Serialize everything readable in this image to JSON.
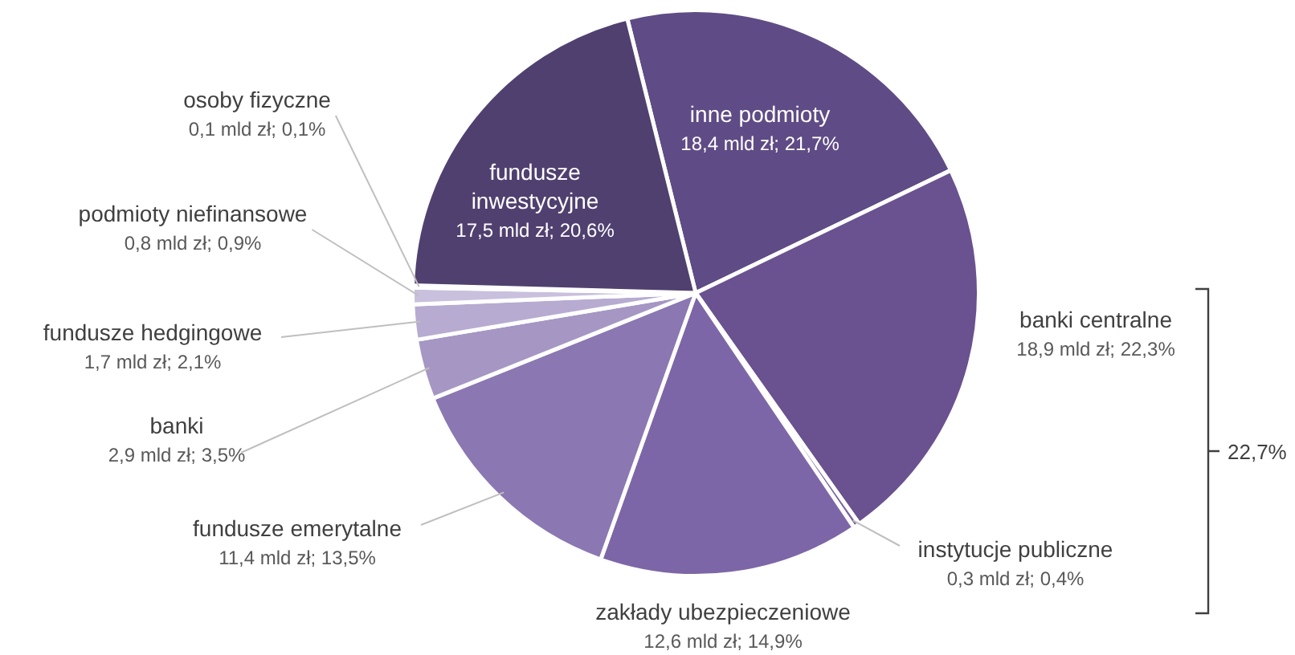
{
  "chart_data": {
    "type": "pie",
    "categories": [
      "inne podmioty",
      "banki centralne",
      "instytucje publiczne",
      "zakłady ubezpieczeniowe",
      "fundusze emerytalne",
      "banki",
      "fundusze hedgingowe",
      "podmioty niefinansowe",
      "osoby fizyczne",
      "fundusze inwestycyjne"
    ],
    "values": [
      18.4,
      18.9,
      0.3,
      12.6,
      11.4,
      2.9,
      1.7,
      0.8,
      0.1,
      17.5
    ],
    "value_labels": [
      "18,4 mld zł; 21,7%",
      "18,9 mld zł; 22,3%",
      "0,3 mld zł; 0,4%",
      "12,6 mld zł; 14,9%",
      "11,4 mld zł; 13,5%",
      "2,9 mld zł; 3,5%",
      "1,7 mld zł; 2,1%",
      "0,8 mld zł; 0,9%",
      "0,1 mld zł; 0,1%",
      "17,5 mld zł; 20,6%"
    ],
    "colors": [
      "#5f4b85",
      "#6a5190",
      "#7a62a0",
      "#7d66a7",
      "#8b77b2",
      "#a596c4",
      "#b7abd1",
      "#c9c0de",
      "#ddd7ea",
      "#50406f"
    ],
    "annotations": [
      "22,7%"
    ],
    "legend": false
  }
}
